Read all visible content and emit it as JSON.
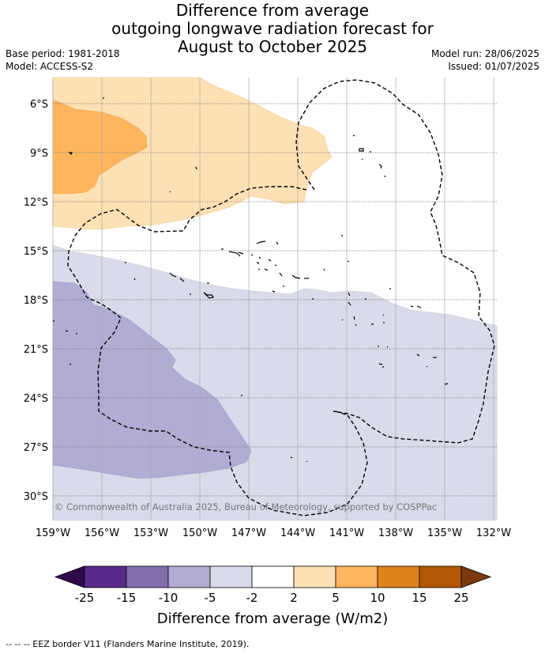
{
  "title": {
    "line1": "Difference from average",
    "line2": "outgoing longwave radiation forecast for",
    "line3": "August to October 2025"
  },
  "meta": {
    "base_period": "Base period: 1981-2018",
    "model": "Model: ACCESS-S2",
    "model_run": "Model run: 28/06/2025",
    "issued": "Issued: 01/07/2025"
  },
  "map": {
    "lon_labels": [
      "159°W",
      "156°W",
      "153°W",
      "150°W",
      "147°W",
      "144°W",
      "141°W",
      "138°W",
      "135°W",
      "132°W"
    ],
    "lat_labels": [
      "6°S",
      "9°S",
      "12°S",
      "15°S",
      "18°S",
      "21°S",
      "24°S",
      "27°S",
      "30°S"
    ],
    "lon_range": [
      -159,
      -132
    ],
    "lat_range": [
      -31.5,
      -4.5
    ],
    "copyright": "© Commonwealth of Australia 2025, Bureau of Meteorology, supported by COSPPac"
  },
  "colorbar": {
    "ticks": [
      "-25",
      "-15",
      "-10",
      "-5",
      "-2",
      "2",
      "5",
      "10",
      "15",
      "25"
    ],
    "label": "Difference from average (W/m2)",
    "colors": [
      "#2f0a4a",
      "#5a2a8a",
      "#8270aa",
      "#b1acd3",
      "#d9daea",
      "#ffffff",
      "#fde0b4",
      "#fdb65e",
      "#e0821c",
      "#b35806",
      "#7b3a0e"
    ]
  },
  "footer": {
    "legend": "--  --  -- EEZ border V11 (Flanders Marine Institute, 2019)."
  }
}
